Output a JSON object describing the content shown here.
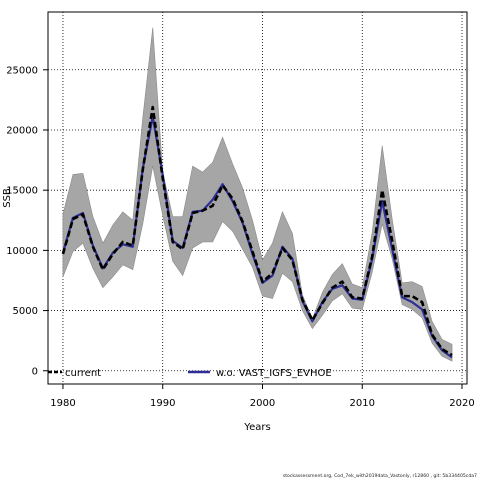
{
  "chart_data": {
    "type": "line",
    "xlabel": "Years",
    "ylabel": "SSB",
    "xlim": [
      1978.5,
      2020.5
    ],
    "ylim": [
      -1100,
      29800
    ],
    "x_ticks": [
      "1980",
      "1990",
      "2000",
      "2010",
      "2020"
    ],
    "y_ticks": [
      "0",
      "5000",
      "10000",
      "15000",
      "20000",
      "25000"
    ],
    "x_tick_values": [
      1980,
      1990,
      2000,
      2010,
      2020
    ],
    "y_tick_values": [
      0,
      5000,
      10000,
      15000,
      20000,
      25000
    ],
    "grid": true,
    "legend_placement": "bottom",
    "x": [
      1980,
      1981,
      1982,
      1983,
      1984,
      1985,
      1986,
      1987,
      1988,
      1989,
      1990,
      1991,
      1992,
      1993,
      1994,
      1995,
      1996,
      1997,
      1998,
      1999,
      2000,
      2001,
      2002,
      2003,
      2004,
      2005,
      2006,
      2007,
      2008,
      2009,
      2010,
      2011,
      2012,
      2013,
      2014,
      2015,
      2016,
      2017,
      2018,
      2019
    ],
    "band": {
      "upper": [
        13000,
        16300,
        16400,
        12800,
        10600,
        12100,
        13200,
        12500,
        21000,
        28500,
        16500,
        12800,
        12800,
        17000,
        16500,
        17300,
        19400,
        17200,
        15200,
        12500,
        9200,
        10600,
        13200,
        11400,
        6300,
        4300,
        6500,
        8000,
        8900,
        7200,
        6900,
        11500,
        18700,
        12600,
        7300,
        7400,
        7000,
        4100,
        2600,
        2200
      ],
      "lower": [
        7800,
        9900,
        10600,
        8500,
        6900,
        7800,
        8800,
        8400,
        12200,
        17000,
        12900,
        9100,
        7900,
        10200,
        10700,
        10700,
        12400,
        11600,
        10100,
        8600,
        6200,
        6000,
        8100,
        7400,
        5000,
        3500,
        4600,
        5800,
        6400,
        5200,
        5100,
        8200,
        12200,
        9300,
        5500,
        5100,
        4400,
        2300,
        1200,
        800
      ]
    },
    "series": [
      {
        "name": "current",
        "color": "#000000",
        "style": "dashed",
        "values": [
          9700,
          12600,
          13000,
          10300,
          8400,
          9700,
          10700,
          10400,
          16700,
          21900,
          16000,
          10700,
          10100,
          13100,
          13300,
          13700,
          15400,
          14300,
          12400,
          9900,
          7400,
          8100,
          10200,
          9200,
          5900,
          4200,
          5600,
          6900,
          7400,
          6100,
          6000,
          9500,
          15000,
          10800,
          6200,
          6200,
          5700,
          3000,
          1800,
          1300
        ]
      },
      {
        "name": "w.o. VAST_IGFS_EVHOE",
        "color": "#2e2f96",
        "style": "solid",
        "values": [
          9800,
          12700,
          13100,
          10400,
          8500,
          9800,
          10500,
          10300,
          16800,
          21100,
          16300,
          10800,
          10200,
          13200,
          13300,
          14200,
          15500,
          14100,
          12300,
          9700,
          7300,
          7900,
          10300,
          9300,
          5800,
          4100,
          5700,
          6800,
          7100,
          6000,
          5900,
          9300,
          14100,
          10100,
          6100,
          5700,
          5100,
          2900,
          1700,
          1100
        ]
      }
    ],
    "band_color": "#a6a6a6",
    "band_edge": "#8a8a8a"
  },
  "footer_text": "stockassessment.org, Cod_7ek_with2019data_Vastonly, r12860 , git: 5b334405cda7"
}
